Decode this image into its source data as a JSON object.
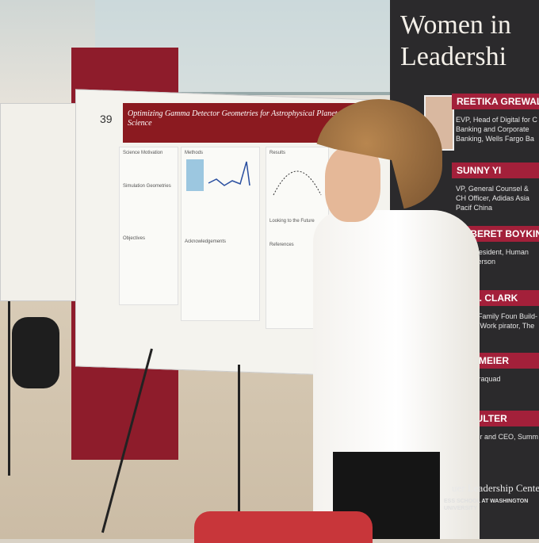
{
  "scene": "photo",
  "banner": {
    "title_line1": "Women in",
    "title_line2": "Leadershi",
    "entries": [
      {
        "name": "REETIKA GREWAL",
        "role": "EVP, Head of Digital for C Banking and Corporate Banking, Wells Fargo Ba"
      },
      {
        "name": "SUNNY YI",
        "role": "VP, General Counsel & CH Officer, Adidas Asia Pacif China"
      },
      {
        "name": "AKBERET BOYKIN FA",
        "role": "Vice President, Human Re Emerson"
      },
      {
        "name": "NE K. CLARK",
        "role": "rk-Fox Family Foun Build-A-Bear Work pirator, The Delma"
      },
      {
        "name": "WEHMEIER",
        "role": "ent, Paraquad"
      },
      {
        "name": "I COULTER",
        "role": "Founder and CEO, Summ"
      }
    ],
    "center_name": "uer Leadership Center",
    "center_sub": "ESS SCHOOL AT WASHINGTON UNIVERSITY"
  },
  "poster": {
    "number": "39",
    "title": "Optimizing Gamma Detector Geometries for Astrophysical Planetary Science",
    "sections": [
      "Science Motivation",
      "Methods",
      "Results",
      "Simulation Geometries",
      "Objectives",
      "Acknowledgements",
      "Looking to the Future",
      "References"
    ]
  },
  "colors": {
    "banner_bg": "#2b2a2c",
    "banner_accent": "#a3203a",
    "poster_header": "#8b1a20"
  }
}
